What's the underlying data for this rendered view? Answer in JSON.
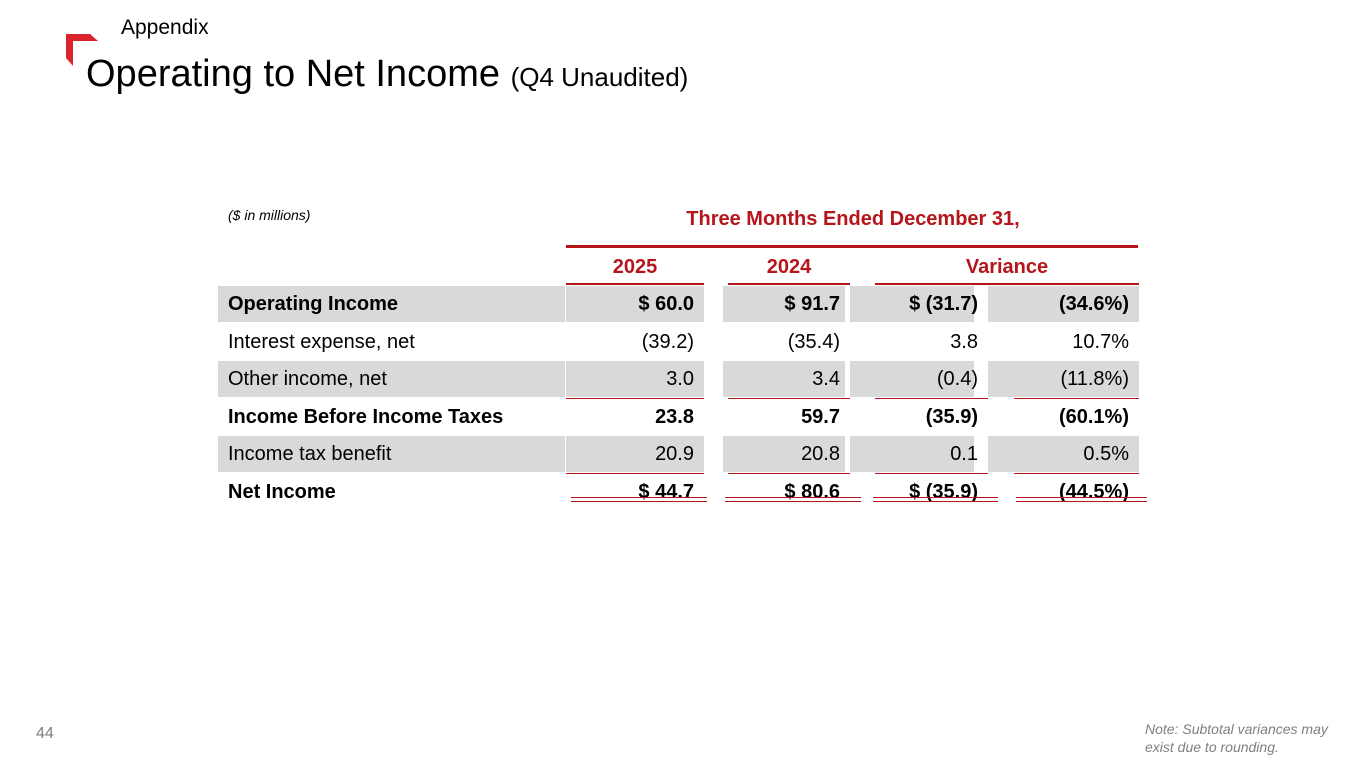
{
  "header": {
    "section": "Appendix",
    "title": "Operating to Net Income",
    "subtitle": "(Q4 Unaudited)"
  },
  "table": {
    "units_note": "($ in millions)",
    "period_header": "Three Months Ended December 31,",
    "columns": [
      "2025",
      "2024",
      "Variance"
    ],
    "rows": [
      {
        "label": "Operating Income",
        "bold": true,
        "shaded": true,
        "values": [
          "$ 60.0",
          "$ 91.7",
          "$ (31.7)",
          "(34.6%)"
        ]
      },
      {
        "label": "Interest expense, net",
        "bold": false,
        "shaded": false,
        "values": [
          "(39.2)",
          "(35.4)",
          "3.8",
          "10.7%"
        ]
      },
      {
        "label": "Other income, net",
        "bold": false,
        "shaded": true,
        "values": [
          "3.0",
          "3.4",
          "(0.4)",
          "(11.8%)"
        ]
      },
      {
        "label": "Income Before Income Taxes",
        "bold": true,
        "shaded": false,
        "values": [
          "23.8",
          "59.7",
          "(35.9)",
          "(60.1%)"
        ]
      },
      {
        "label": "Income tax benefit",
        "bold": false,
        "shaded": true,
        "values": [
          "20.9",
          "20.8",
          "0.1",
          "0.5%"
        ]
      },
      {
        "label": "Net Income",
        "bold": true,
        "shaded": false,
        "values": [
          "$ 44.7",
          "$ 80.6",
          "$ (35.9)",
          "(44.5%)"
        ]
      }
    ]
  },
  "footer": {
    "page_number": "44",
    "note": "Note: Subtotal variances may exist due to rounding."
  },
  "colors": {
    "accent": "#b4161b",
    "row_shade": "#d9d9d9"
  }
}
